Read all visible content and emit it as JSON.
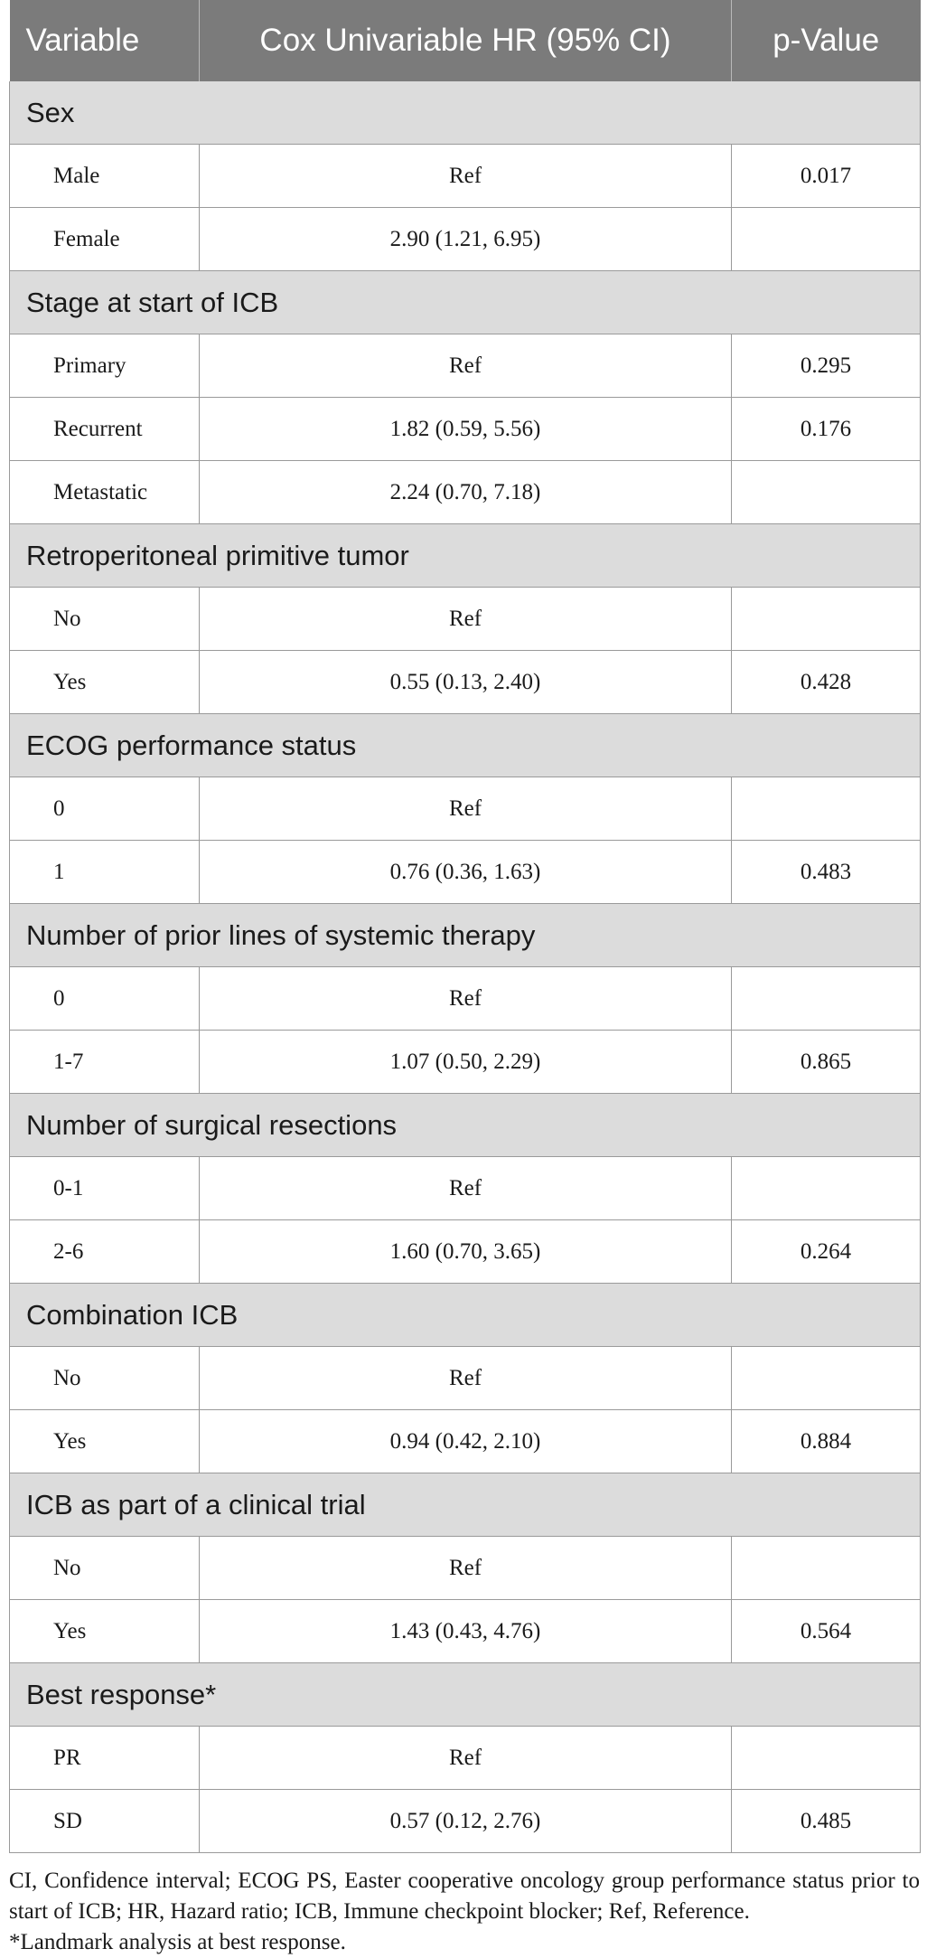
{
  "header": {
    "variable": "Variable",
    "hr": "Cox Univariable HR (95% CI)",
    "p": "p-Value"
  },
  "sections": [
    {
      "title": "Sex",
      "rows": [
        {
          "label": "Male",
          "hr": "Ref",
          "p": "0.017"
        },
        {
          "label": "Female",
          "hr": "2.90 (1.21, 6.95)",
          "p": ""
        }
      ]
    },
    {
      "title": "Stage at start of ICB",
      "rows": [
        {
          "label": "Primary",
          "hr": "Ref",
          "p": "0.295"
        },
        {
          "label": "Recurrent",
          "hr": "1.82 (0.59, 5.56)",
          "p": "0.176"
        },
        {
          "label": "Metastatic",
          "hr": "2.24 (0.70, 7.18)",
          "p": ""
        }
      ]
    },
    {
      "title": "Retroperitoneal primitive tumor",
      "rows": [
        {
          "label": "No",
          "hr": "Ref",
          "p": ""
        },
        {
          "label": "Yes",
          "hr": "0.55 (0.13, 2.40)",
          "p": "0.428"
        }
      ]
    },
    {
      "title": "ECOG performance status",
      "rows": [
        {
          "label": "0",
          "hr": "Ref",
          "p": ""
        },
        {
          "label": "1",
          "hr": "0.76 (0.36, 1.63)",
          "p": "0.483"
        }
      ]
    },
    {
      "title": "Number of prior lines of systemic therapy",
      "rows": [
        {
          "label": "0",
          "hr": "Ref",
          "p": ""
        },
        {
          "label": "1-7",
          "hr": "1.07 (0.50, 2.29)",
          "p": "0.865"
        }
      ]
    },
    {
      "title": "Number of surgical resections",
      "rows": [
        {
          "label": "0-1",
          "hr": "Ref",
          "p": ""
        },
        {
          "label": "2-6",
          "hr": "1.60 (0.70, 3.65)",
          "p": "0.264"
        }
      ]
    },
    {
      "title": "Combination ICB",
      "rows": [
        {
          "label": "No",
          "hr": "Ref",
          "p": ""
        },
        {
          "label": "Yes",
          "hr": "0.94 (0.42, 2.10)",
          "p": "0.884"
        }
      ]
    },
    {
      "title": "ICB as part of a clinical trial",
      "rows": [
        {
          "label": "No",
          "hr": "Ref",
          "p": ""
        },
        {
          "label": "Yes",
          "hr": "1.43 (0.43, 4.76)",
          "p": "0.564"
        }
      ]
    },
    {
      "title": "Best response*",
      "rows": [
        {
          "label": "PR",
          "hr": "Ref",
          "p": ""
        },
        {
          "label": "SD",
          "hr": "0.57 (0.12, 2.76)",
          "p": "0.485"
        }
      ]
    }
  ],
  "footnotes": {
    "abbreviations": "CI, Confidence interval; ECOG PS, Easter cooperative oncology group performance status prior to start of ICB; HR, Hazard ratio; ICB, Immune checkpoint blocker; Ref, Reference.",
    "landmark": "*Landmark analysis at best response."
  }
}
